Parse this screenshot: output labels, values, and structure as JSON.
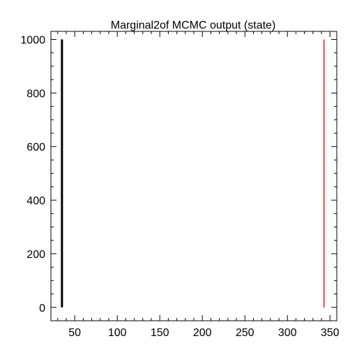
{
  "chart_data": {
    "type": "line",
    "title": "Marginal2of MCMC output (state)",
    "xlabel": "",
    "ylabel": "",
    "xlim": [
      22,
      358
    ],
    "ylim": [
      -50,
      1030
    ],
    "xticks": [
      50,
      100,
      150,
      200,
      250,
      300,
      350
    ],
    "yticks": [
      0,
      200,
      400,
      600,
      800,
      1000
    ],
    "x_minor_step": 10,
    "y_minor_step": 50,
    "grid": false,
    "series": [
      {
        "color": "#000000",
        "stroke_width": 3,
        "points": [
          {
            "x": 35,
            "y": 0
          },
          {
            "x": 35,
            "y": 1000
          }
        ]
      },
      {
        "color": "#e41a1c",
        "stroke_width": 1.5,
        "points": [
          {
            "x": 343,
            "y": 0
          },
          {
            "x": 343,
            "y": 1000
          }
        ]
      }
    ]
  }
}
